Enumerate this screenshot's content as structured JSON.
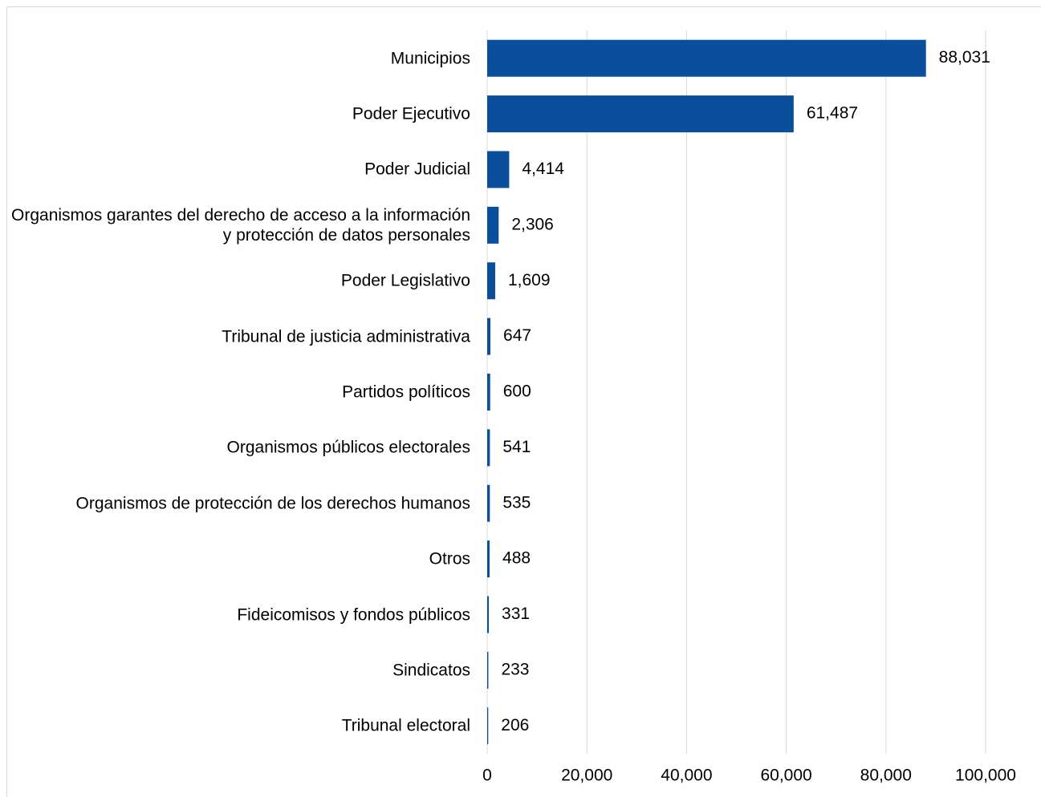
{
  "chart_data": {
    "type": "bar",
    "orientation": "horizontal",
    "categories": [
      "Municipios",
      "Poder Ejecutivo",
      "Poder Judicial",
      "Organismos garantes del derecho de acceso a la información y protección de datos personales",
      "Poder Legislativo",
      "Tribunal de justicia administrativa",
      "Partidos políticos",
      "Organismos públicos electorales",
      "Organismos de protección de los derechos humanos",
      "Otros",
      "Fideicomisos y fondos públicos",
      "Sindicatos",
      "Tribunal electoral"
    ],
    "values": [
      88031,
      61487,
      4414,
      2306,
      1609,
      647,
      600,
      541,
      535,
      488,
      331,
      233,
      206
    ],
    "value_labels": [
      "88,031",
      "61,487",
      "4,414",
      "2,306",
      "1,609",
      "647",
      "600",
      "541",
      "535",
      "488",
      "331",
      "233",
      "206"
    ],
    "color": "#0a4f9c",
    "xlim": [
      0,
      100000
    ],
    "xticks": [
      0,
      {
        "value": 20000,
        "label": "20,000"
      },
      {
        "value": 40000,
        "label": "40,000"
      },
      {
        "value": 60000,
        "label": "60,000"
      },
      {
        "value": 80000,
        "label": "80,000"
      },
      {
        "value": 100000,
        "label": "100,000"
      }
    ],
    "grid": true
  }
}
